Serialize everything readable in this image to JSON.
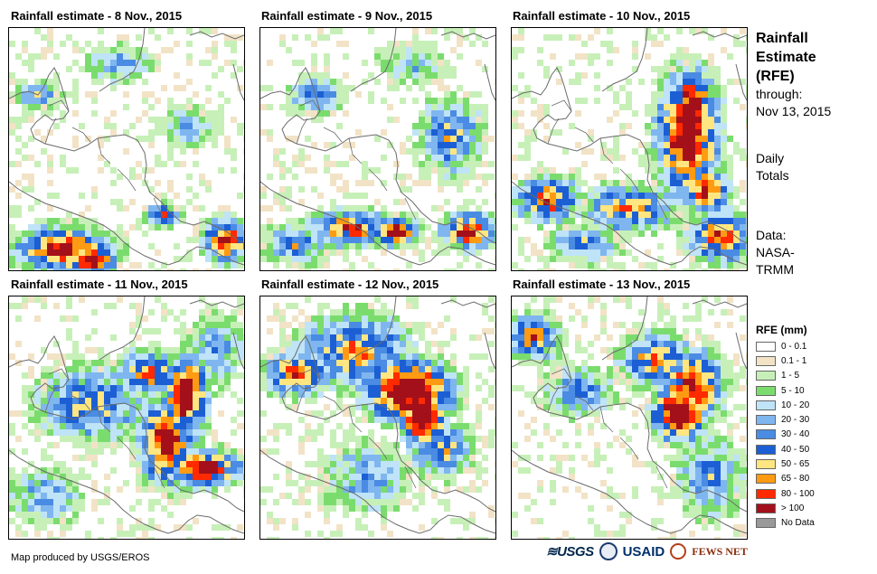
{
  "panels": [
    {
      "title": "Rainfall estimate - 8 Nov., 2015",
      "profile": "d8"
    },
    {
      "title": "Rainfall estimate - 9 Nov., 2015",
      "profile": "d9"
    },
    {
      "title": "Rainfall estimate - 10 Nov., 2015",
      "profile": "d10"
    },
    {
      "title": "Rainfall estimate - 11 Nov., 2015",
      "profile": "d11"
    },
    {
      "title": "Rainfall estimate - 12 Nov., 2015",
      "profile": "d12"
    },
    {
      "title": "Rainfall estimate - 13 Nov., 2015",
      "profile": "d13"
    }
  ],
  "sidebar": {
    "title_line1": "Rainfall",
    "title_line2": "Estimate",
    "title_line3": "(RFE)",
    "through_label": "through:",
    "through_date": "Nov 13, 2015",
    "daily_line1": "Daily",
    "daily_line2": "Totals",
    "data_line1": "Data:",
    "data_line2": "NASA-",
    "data_line3": "TRMM"
  },
  "legend": {
    "title": "RFE (mm)",
    "items": [
      {
        "label": "0 - 0.1",
        "color": "#ffffff"
      },
      {
        "label": "0.1 - 1",
        "color": "#f2e3c6"
      },
      {
        "label": "1 - 5",
        "color": "#c7f0b8"
      },
      {
        "label": "5 - 10",
        "color": "#7bdc6e"
      },
      {
        "label": "10 - 20",
        "color": "#bfe3f7"
      },
      {
        "label": "20 - 30",
        "color": "#7fb6ef"
      },
      {
        "label": "30 - 40",
        "color": "#4a8be3"
      },
      {
        "label": "40 - 50",
        "color": "#1c5fd4"
      },
      {
        "label": "50 - 65",
        "color": "#ffe680"
      },
      {
        "label": "65 - 80",
        "color": "#ff9b12"
      },
      {
        "label": "80 - 100",
        "color": "#ff2a00"
      },
      {
        "label": "> 100",
        "color": "#a3101a"
      },
      {
        "label": "No Data",
        "color": "#999999"
      }
    ]
  },
  "footer": {
    "credit": "Map produced by USGS/EROS"
  },
  "logos": {
    "usgs": "≋USGS",
    "usaid": "USAID",
    "fews": "FEWS NET"
  }
}
